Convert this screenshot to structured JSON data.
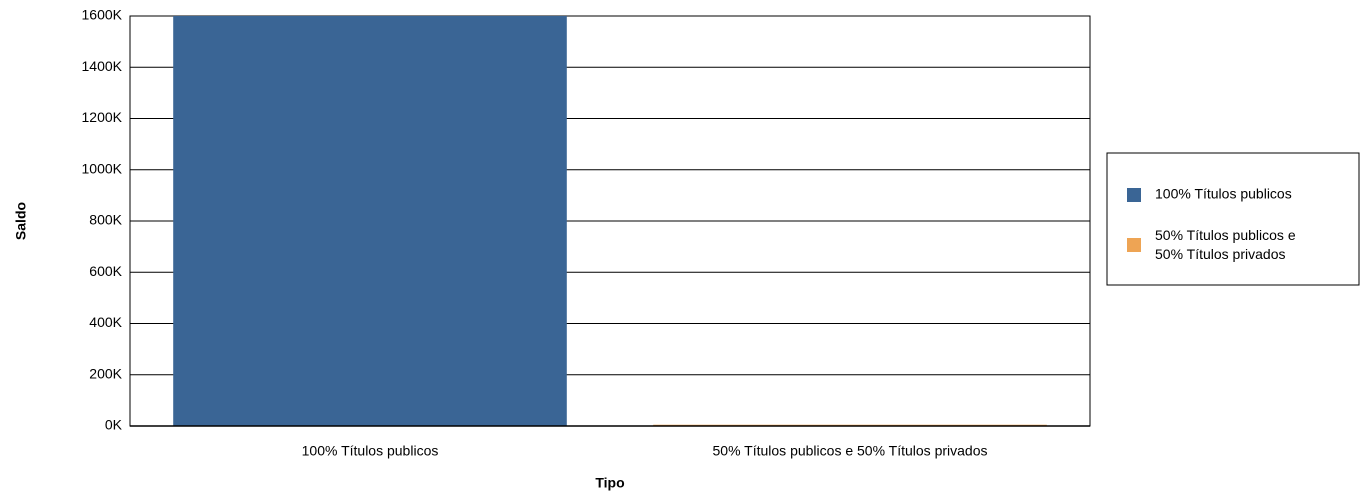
{
  "chart_data": {
    "type": "bar",
    "x_label": "Tipo",
    "y_label": "Saldo",
    "categories": [
      "100% Títulos publicos",
      "50% Títulos publicos e 50% Títulos privados"
    ],
    "series": [
      {
        "name": "100% Títulos publicos",
        "color": "#3a6595",
        "values": [
          1600000,
          null
        ]
      },
      {
        "name": "50% Títulos publicos e 50% Títulos privados",
        "color": "#eea454",
        "values": [
          null,
          5000
        ]
      }
    ],
    "ylim": [
      0,
      1600000
    ],
    "yticks": [
      {
        "value": 0,
        "label": "0K"
      },
      {
        "value": 200000,
        "label": "200K"
      },
      {
        "value": 400000,
        "label": "400K"
      },
      {
        "value": 600000,
        "label": "600K"
      },
      {
        "value": 800000,
        "label": "800K"
      },
      {
        "value": 1000000,
        "label": "1000K"
      },
      {
        "value": 1200000,
        "label": "1200K"
      },
      {
        "value": 1400000,
        "label": "1400K"
      },
      {
        "value": 1600000,
        "label": "1600K"
      }
    ],
    "grid": true,
    "legend": "right"
  }
}
